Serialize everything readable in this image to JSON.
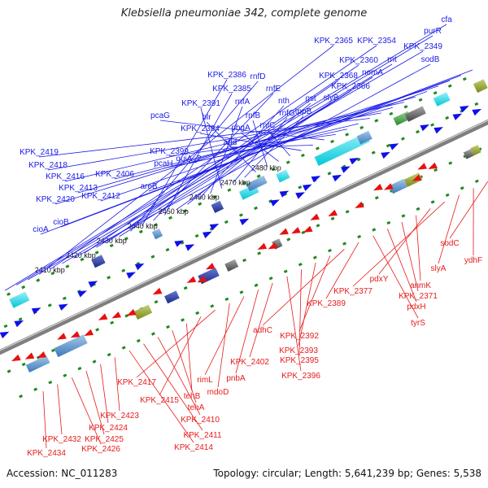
{
  "title": "Klebsiella pneumoniae 342, complete genome",
  "footer": {
    "accession": "Accession: NC_011283",
    "summary": "Topology: circular; Length: 5,641,239 bp; Genes: 5,538"
  },
  "colors": {
    "forward_labels": "#1a1ae6",
    "reverse_labels": "#e61a1a",
    "backbone": "#7f7f7f",
    "ticks": "#1f8a1f"
  },
  "tick_labels": [
    "2410 kbp",
    "2420 kbp",
    "2430 kbp",
    "2440 kbp",
    "2450 kbp",
    "2460 kbp",
    "2470 kbp",
    "2480 kbp"
  ],
  "forward_genes": [
    "cfa",
    "purR",
    "KPK_2349",
    "KPK_2365",
    "KPK_2354",
    "rnt",
    "sodB",
    "KPK_2360",
    "nemA",
    "KPK_2368",
    "KPK_2366",
    "rnfD",
    "KPK_2386",
    "rnfE",
    "KPK_2385",
    "slyB",
    "gst",
    "nth",
    "rnfA",
    "KPK_2391",
    "rnfG",
    "tppB",
    "blr",
    "rnfB",
    "pbgA",
    "rnfC",
    "KPK_2394",
    "add",
    "pcaG",
    "KPK_2399",
    "pcaH",
    "quiA_2",
    "KPK_2419",
    "KPK_2418",
    "KPK_2406",
    "KPK_2416",
    "KPK_2413",
    "areB",
    "KPK_2420",
    "KPK_2412",
    "cioB",
    "cioA"
  ],
  "reverse_genes": [
    "sodC",
    "ydhF",
    "slyA",
    "KPK_2377",
    "pdxY",
    "anmK",
    "KPK_2371",
    "pdxH",
    "tyrS",
    "KPK_2389",
    "adhC",
    "KPK_2392",
    "KPK_2393",
    "KPK_2395",
    "KPK_2396",
    "KPK_2402",
    "pnbA",
    "rimL",
    "mdoD",
    "KPK_2417",
    "KPK_2415",
    "tehB",
    "tehA",
    "KPK_2410",
    "KPK_2411",
    "KPK_2414",
    "KPK_2423",
    "KPK_2424",
    "KPK_2425",
    "KPK_2426",
    "KPK_2432",
    "KPK_2434"
  ]
}
